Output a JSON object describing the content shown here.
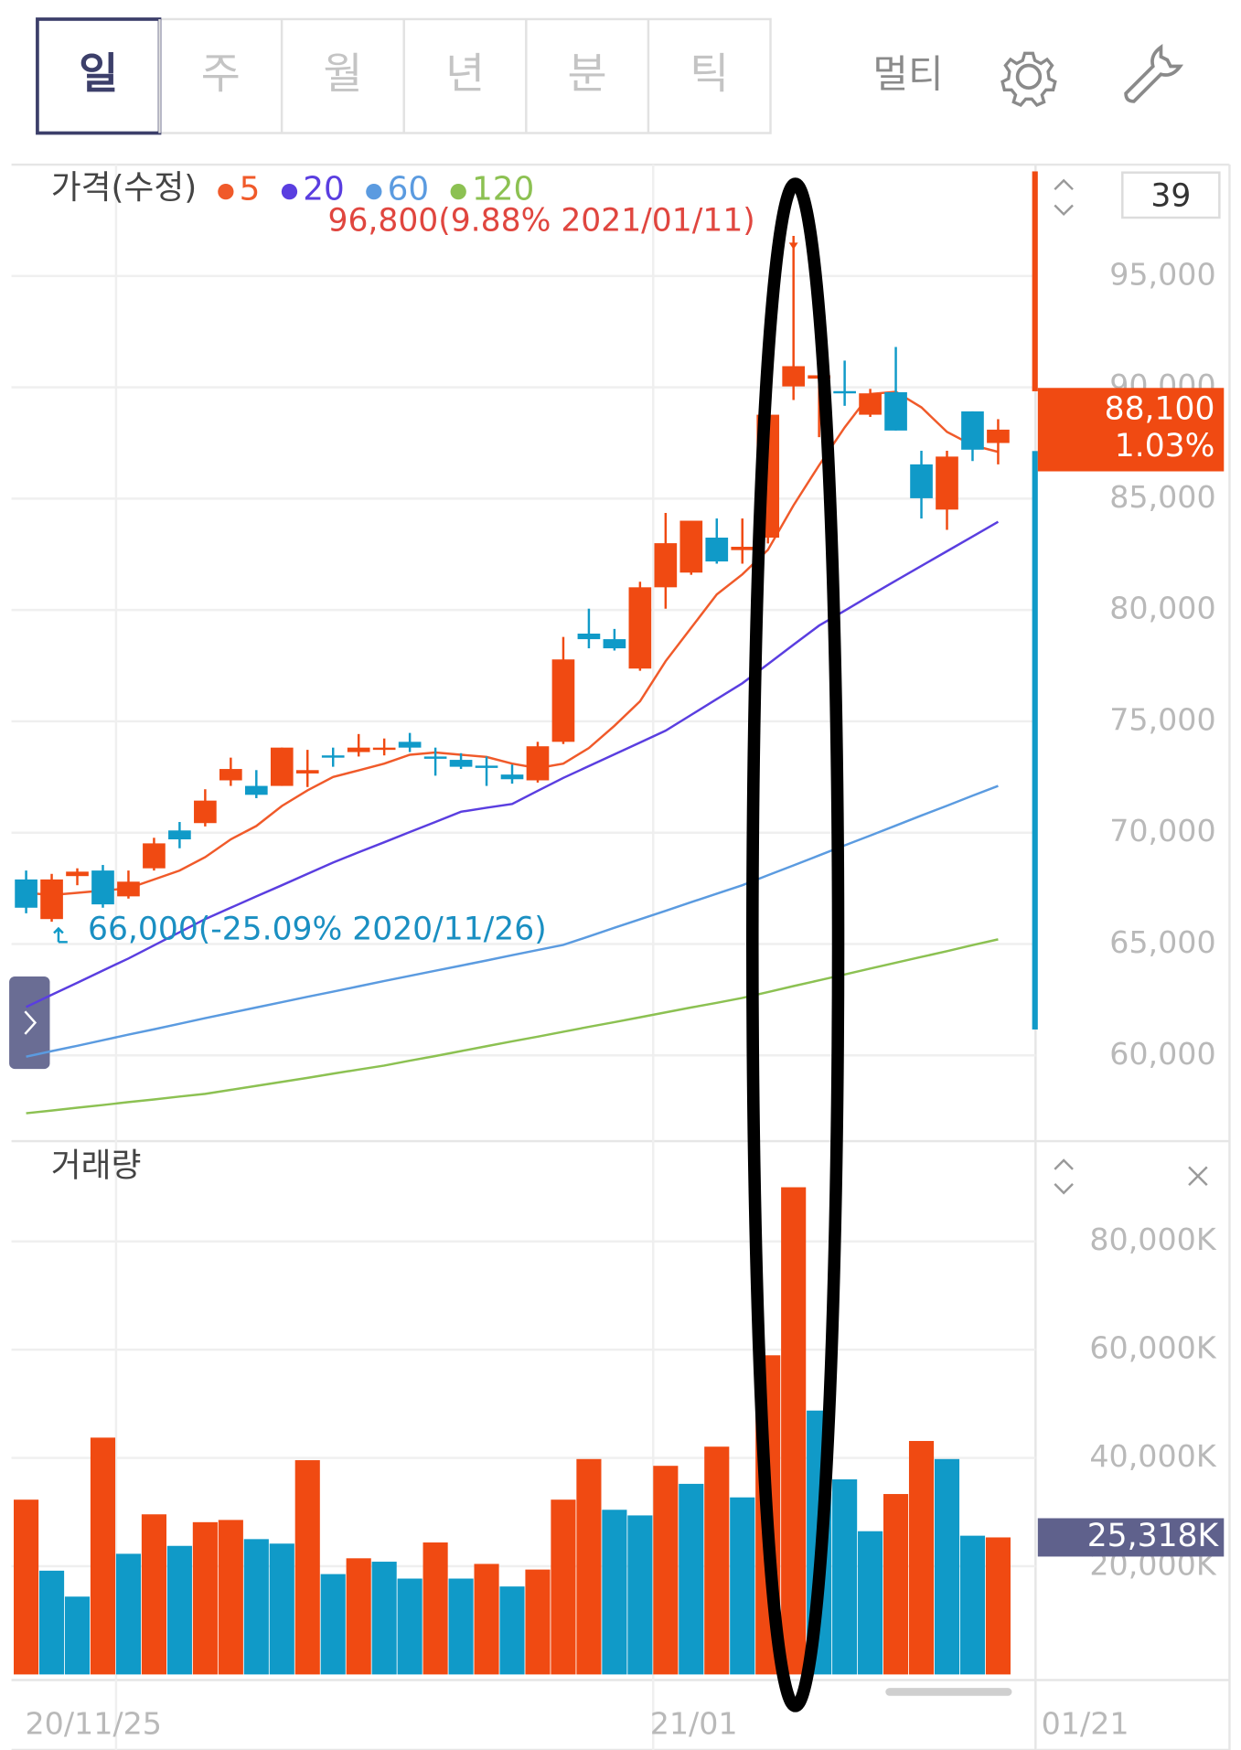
{
  "tabs": [
    "일",
    "주",
    "월",
    "년",
    "분",
    "틱"
  ],
  "multi_label": "멀티",
  "visible_count": 39,
  "chart_data": [
    {
      "type": "candlestick",
      "title": "가격(수정)",
      "up_color": "#f04a12",
      "down_color": "#109ac8",
      "open": [
        67900,
        66120,
        68050,
        68300,
        67140,
        68400,
        70100,
        70430,
        72350,
        72100,
        72100,
        72660,
        73470,
        73620,
        73720,
        74080,
        73420,
        73270,
        73010,
        72610,
        72350,
        74080,
        78940,
        78690,
        77370,
        81020,
        81680,
        83250,
        82690,
        83250,
        90040,
        90390,
        89830,
        88770,
        89780,
        86540,
        84510,
        88920,
        87500
      ],
      "high": [
        68300,
        68150,
        68400,
        68550,
        68300,
        69770,
        70480,
        71950,
        73370,
        72810,
        73820,
        73720,
        73820,
        74430,
        74230,
        74480,
        73820,
        73570,
        73420,
        73060,
        74080,
        78790,
        80060,
        79150,
        81270,
        84360,
        84010,
        84110,
        84110,
        88920,
        96800,
        90540,
        91200,
        89930,
        91810,
        87150,
        87150,
        88920,
        88570
      ],
      "low": [
        66380,
        66000,
        67640,
        66630,
        67040,
        68300,
        69300,
        70280,
        72100,
        71550,
        72100,
        72050,
        72960,
        73420,
        73470,
        73620,
        72560,
        72860,
        72100,
        72200,
        72250,
        73980,
        78280,
        78180,
        77270,
        80060,
        81580,
        82080,
        82080,
        82990,
        89430,
        87760,
        89170,
        88670,
        88060,
        84110,
        83600,
        86690,
        86540
      ],
      "close": [
        66630,
        67900,
        68250,
        66780,
        67800,
        69520,
        69700,
        71440,
        72860,
        71700,
        73820,
        72810,
        73370,
        73820,
        73820,
        73820,
        73320,
        72960,
        72910,
        72400,
        73880,
        77780,
        78690,
        78280,
        81020,
        83000,
        84010,
        82180,
        82840,
        88770,
        90950,
        90540,
        89730,
        89730,
        88060,
        85020,
        86890,
        87200,
        88100
      ],
      "close_labels": [
        null,
        null,
        null,
        null,
        null,
        null,
        null,
        null,
        null,
        null,
        null,
        null,
        null,
        null,
        null,
        null,
        null,
        null,
        null,
        null,
        null,
        null,
        null,
        null,
        null,
        null,
        null,
        null,
        null,
        null,
        null,
        null,
        null,
        null,
        null,
        null,
        null,
        null,
        "88,100"
      ],
      "change": 1.03,
      "change_label": "1.03%",
      "high_annotation": "96,800(9.88% 2021/01/11)",
      "low_annotation": "66,000(-25.09% 2020/11/26)",
      "ma": [
        {
          "name": "5",
          "color": "#f05a2a",
          "values": [
            67300,
            67200,
            67300,
            67400,
            67500,
            67900,
            68300,
            68900,
            69700,
            70300,
            71200,
            71900,
            72500,
            72800,
            73100,
            73500,
            73600,
            73500,
            73400,
            73100,
            72900,
            73100,
            73800,
            74800,
            75900,
            77700,
            79200,
            80700,
            81600,
            82700,
            84700,
            86500,
            88200,
            89700,
            89800,
            89100,
            88000,
            87400,
            87100
          ]
        },
        {
          "name": "20",
          "color": "#5a3ee0",
          "values": [
            62170,
            62720,
            63260,
            63810,
            64350,
            64940,
            65530,
            66120,
            66630,
            67140,
            67640,
            68150,
            68660,
            69120,
            69570,
            70030,
            70480,
            70940,
            71120,
            71290,
            71880,
            72460,
            72990,
            73520,
            74050,
            74580,
            75290,
            76000,
            76710,
            77570,
            78440,
            79300,
            79970,
            80650,
            81320,
            81980,
            82640,
            83300,
            83960
          ]
        },
        {
          "name": "60",
          "color": "#5b9be0",
          "values": [
            59940,
            60190,
            60430,
            60680,
            60930,
            61170,
            61420,
            61670,
            61910,
            62150,
            62390,
            62630,
            62860,
            63100,
            63340,
            63570,
            63800,
            64030,
            64260,
            64500,
            64730,
            64960,
            65340,
            65730,
            66110,
            66490,
            66880,
            67260,
            67640,
            68090,
            68530,
            68980,
            69430,
            69870,
            70320,
            70770,
            71210,
            71660,
            72100
          ]
        },
        {
          "name": "120",
          "color": "#8cc152",
          "values": [
            57400,
            57520,
            57650,
            57770,
            57900,
            58020,
            58150,
            58270,
            58450,
            58630,
            58810,
            58990,
            59180,
            59360,
            59540,
            59760,
            59970,
            60190,
            60410,
            60630,
            60840,
            61060,
            61280,
            61490,
            61710,
            61930,
            62150,
            62360,
            62580,
            62840,
            63110,
            63370,
            63630,
            63900,
            64160,
            64420,
            64680,
            64950,
            65210
          ]
        }
      ],
      "ylim": [
        56250,
        99900
      ],
      "yticks": [
        {
          "value": 60000,
          "label": "60,000"
        },
        {
          "value": 65000,
          "label": "65,000"
        },
        {
          "value": 70000,
          "label": "70,000"
        },
        {
          "value": 75000,
          "label": "75,000"
        },
        {
          "value": 80000,
          "label": "80,000"
        },
        {
          "value": 85000,
          "label": "85,000"
        },
        {
          "value": 90000,
          "label": "90,000"
        },
        {
          "value": 95000,
          "label": "95,000"
        }
      ],
      "grid": true
    },
    {
      "type": "bar",
      "title": "거래량",
      "categories": [
        null,
        null,
        null,
        null,
        "20/11/25",
        null,
        null,
        null,
        null,
        null,
        null,
        null,
        null,
        null,
        null,
        null,
        null,
        null,
        null,
        null,
        null,
        null,
        null,
        null,
        null,
        "21/01",
        null,
        null,
        null,
        null,
        null,
        null,
        null,
        null,
        null,
        null,
        null,
        null,
        null
      ],
      "x_right_label": "01/21",
      "values": [
        32290,
        19170,
        14380,
        43750,
        22290,
        29580,
        23750,
        28130,
        28540,
        25000,
        24170,
        39580,
        18540,
        21460,
        20830,
        17710,
        24380,
        17710,
        20420,
        16250,
        19380,
        32290,
        39790,
        30420,
        29380,
        38540,
        35210,
        42080,
        32710,
        58960,
        90000,
        48750,
        36040,
        26460,
        33330,
        43130,
        39790,
        25630,
        25318
      ],
      "value_labels": [
        null,
        null,
        null,
        null,
        null,
        null,
        null,
        null,
        null,
        null,
        null,
        null,
        null,
        null,
        null,
        null,
        null,
        null,
        null,
        null,
        null,
        null,
        null,
        null,
        null,
        null,
        null,
        null,
        null,
        null,
        null,
        null,
        null,
        null,
        null,
        null,
        null,
        null,
        "25,318K"
      ],
      "colors": [
        "#f04a12",
        "#109ac8",
        "#109ac8",
        "#f04a12",
        "#109ac8",
        "#f04a12",
        "#109ac8",
        "#f04a12",
        "#f04a12",
        "#109ac8",
        "#109ac8",
        "#f04a12",
        "#109ac8",
        "#f04a12",
        "#109ac8",
        "#109ac8",
        "#f04a12",
        "#109ac8",
        "#f04a12",
        "#109ac8",
        "#f04a12",
        "#f04a12",
        "#f04a12",
        "#109ac8",
        "#109ac8",
        "#f04a12",
        "#109ac8",
        "#f04a12",
        "#109ac8",
        "#f04a12",
        "#f04a12",
        "#109ac8",
        "#109ac8",
        "#109ac8",
        "#f04a12",
        "#f04a12",
        "#109ac8",
        "#109ac8",
        "#f04a12"
      ],
      "ylim": [
        0,
        97900
      ],
      "yticks": [
        {
          "value": 20000,
          "label": "20,000K"
        },
        {
          "value": 40000,
          "label": "40,000K"
        },
        {
          "value": 60000,
          "label": "60,000K"
        },
        {
          "value": 80000,
          "label": "80,000K"
        }
      ],
      "grid": true
    }
  ]
}
